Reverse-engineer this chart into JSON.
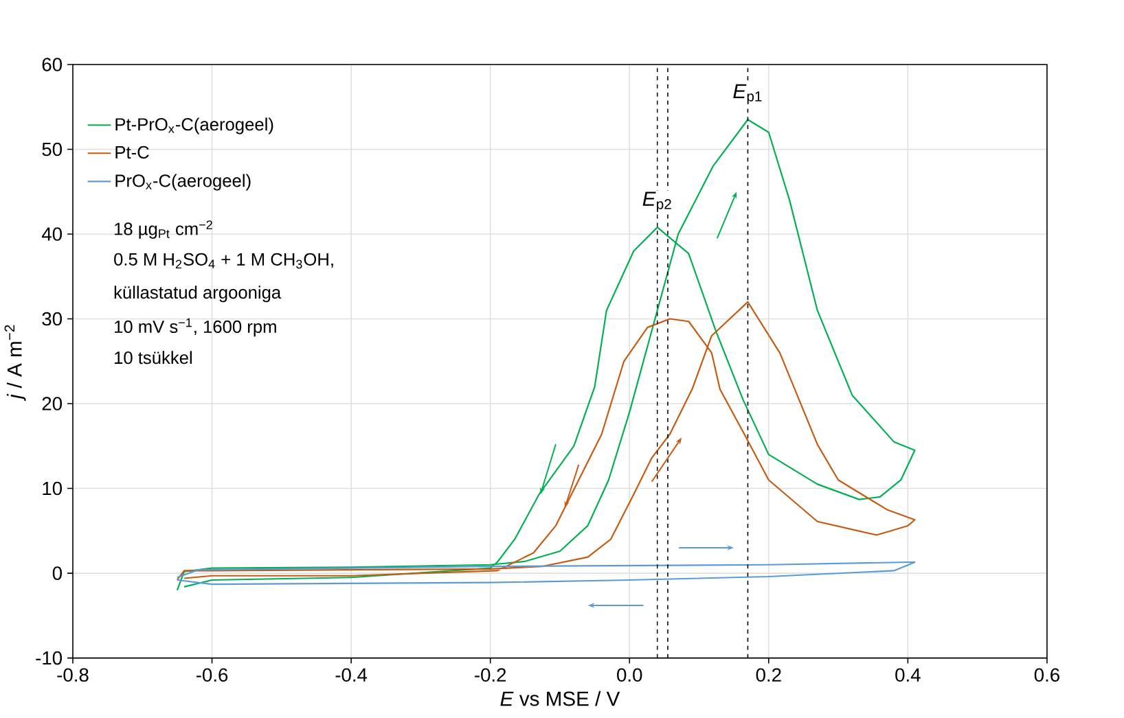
{
  "chart_data": {
    "type": "line",
    "xlabel": "*E* vs MSE / V",
    "ylabel": "*j* / A m$^{−2}$",
    "xlim": [
      -0.8,
      0.6
    ],
    "ylim": [
      -10,
      60
    ],
    "xticks": [
      -0.8,
      -0.6,
      -0.4,
      -0.2,
      {
        "value": 0,
        "label": "0.0"
      },
      0.2,
      0.4,
      0.6
    ],
    "yticks": [
      -10,
      0,
      10,
      20,
      30,
      40,
      50,
      60
    ],
    "grid": true,
    "legend": "top left",
    "marker": "none",
    "line_style": "solid",
    "series": [
      {
        "name": "Pt-PrO$_{x}$-C(aerogeel)",
        "color": "#00b050",
        "x": [
          -0.65,
          -0.64,
          -0.6,
          -0.4,
          -0.2,
          -0.15,
          -0.1,
          -0.06,
          -0.03,
          0.0,
          0.03,
          0.07,
          0.12,
          0.17,
          0.2,
          0.23,
          0.27,
          0.32,
          0.38,
          0.41,
          0.39,
          0.36,
          0.33,
          0.27,
          0.2,
          0.163,
          0.124,
          0.085,
          0.04,
          0.006,
          -0.033,
          -0.05,
          -0.08,
          -0.13,
          -0.165,
          -0.19,
          -0.2,
          -0.4,
          -0.6,
          -0.64
        ],
        "values": [
          -2.0,
          0.2,
          0.6,
          0.7,
          1.0,
          1.4,
          2.6,
          5.6,
          11,
          19,
          28,
          40,
          48,
          53.5,
          52,
          44,
          31,
          21,
          15.5,
          14.5,
          11,
          9,
          8.7,
          10.5,
          14,
          20.5,
          28.6,
          37.7,
          40.8,
          38,
          31,
          22,
          15,
          9.3,
          4,
          1.3,
          0.6,
          -0.5,
          -0.8,
          -1.6
        ]
      },
      {
        "name": "Pt-C",
        "color": "#c55a11",
        "x": [
          -0.65,
          -0.64,
          -0.6,
          -0.4,
          -0.2,
          -0.126,
          -0.06,
          -0.027,
          0.006,
          0.032,
          0.058,
          0.09,
          0.118,
          0.17,
          0.216,
          0.27,
          0.3,
          0.37,
          0.41,
          0.4,
          0.355,
          0.27,
          0.2,
          0.165,
          0.13,
          0.118,
          0.085,
          0.058,
          0.026,
          -0.008,
          -0.04,
          -0.073,
          -0.106,
          -0.138,
          -0.19,
          -0.4,
          -0.6,
          -0.64
        ],
        "values": [
          -0.8,
          0.3,
          0.3,
          0.4,
          0.5,
          0.8,
          1.9,
          4,
          9.3,
          13.6,
          16.4,
          21.7,
          28,
          32,
          26,
          15.2,
          11,
          7.5,
          6.3,
          5.6,
          4.5,
          6.1,
          11,
          16.4,
          21.7,
          26,
          29.7,
          30,
          29,
          25,
          16.4,
          11,
          5.6,
          2.4,
          0.3,
          -0.3,
          -0.3,
          -0.6
        ]
      },
      {
        "name": "PrO$_{x}$-C(aerogeel)",
        "color": "#5b9bd5",
        "x": [
          -0.65,
          -0.62,
          -0.4,
          -0.2,
          0.2,
          0.4,
          0.41,
          0.38,
          0.2,
          0.0,
          -0.2,
          -0.6,
          -0.65
        ],
        "values": [
          -0.5,
          0.4,
          0.6,
          0.8,
          1.0,
          1.3,
          1.3,
          0.3,
          -0.4,
          -0.8,
          -1.1,
          -1.3,
          -0.8
        ]
      }
    ],
    "ref_lines": [
      {
        "axis": "x",
        "value": 0.04,
        "line_style": "dashed",
        "color": "#000000"
      },
      {
        "axis": "x",
        "value": 0.055,
        "line_style": "dashed",
        "color": "#000000"
      },
      {
        "axis": "x",
        "value": 0.17,
        "line_style": "dashed",
        "color": "#000000"
      }
    ],
    "annotations": [
      {
        "text": "*E*$_{p1}$",
        "x": 0.17,
        "y": 56.5
      },
      {
        "text": "*E*$_{p2}$",
        "x": 0.04,
        "y": 43.8
      },
      "18 µg$_{Pt}$ cm$^{−2}$",
      "0.5 M H$_{2}$SO$_{4}$ + 1 M CH$_{3}$OH,",
      "küllastatud argooniga",
      "10 mV s$^{−1}$, 1600 rpm",
      "10 tsükkel"
    ]
  }
}
